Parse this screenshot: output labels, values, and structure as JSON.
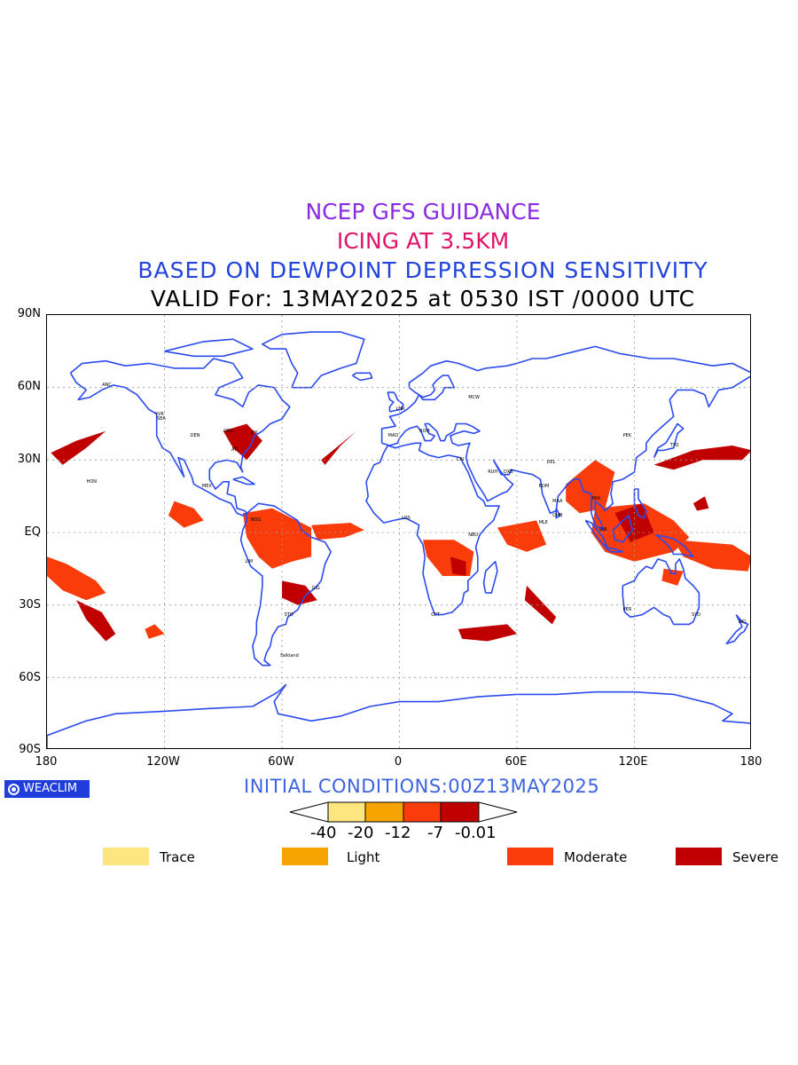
{
  "titles": {
    "line1": "NCEP GFS GUIDANCE",
    "line2": "ICING AT 3.5KM",
    "line3": "BASED ON DEWPOINT DEPRESSION SENSITIVITY",
    "line4": "VALID For: 13MAY2025 at 0530 IST /0000 UTC"
  },
  "colors": {
    "title1": "#8a2be2",
    "title2": "#e0136b",
    "title3": "#2244dd",
    "title4": "#000000",
    "coast": "#2b4bf0",
    "trace": "#fde680",
    "light": "#f7a300",
    "moderate": "#fa3c0a",
    "severe": "#c00000",
    "grid": "#9a9a9a"
  },
  "map": {
    "lat_labels": [
      "90N",
      "60N",
      "30N",
      "EQ",
      "30S",
      "60S",
      "90S"
    ],
    "lon_labels": [
      "180",
      "120W",
      "60W",
      "0",
      "60E",
      "120E",
      "180"
    ],
    "cities": [
      {
        "name": "ANC",
        "lon": -150,
        "lat": 61
      },
      {
        "name": "YVR",
        "lon": -123,
        "lat": 49
      },
      {
        "name": "SEA",
        "lon": -122,
        "lat": 47
      },
      {
        "name": "DEN",
        "lon": -105,
        "lat": 40
      },
      {
        "name": "ORD",
        "lon": -88,
        "lat": 42
      },
      {
        "name": "ATL",
        "lon": -84,
        "lat": 34
      },
      {
        "name": "JFK",
        "lon": -74,
        "lat": 41
      },
      {
        "name": "MEX",
        "lon": -99,
        "lat": 19
      },
      {
        "name": "HON",
        "lon": -158,
        "lat": 21
      },
      {
        "name": "BOG",
        "lon": -74,
        "lat": 5
      },
      {
        "name": "LIM",
        "lon": -77,
        "lat": -12
      },
      {
        "name": "GIG",
        "lon": -43,
        "lat": -23
      },
      {
        "name": "STO",
        "lon": -57,
        "lat": -34
      },
      {
        "name": "Falkland",
        "lon": -59,
        "lat": -51
      },
      {
        "name": "LHR",
        "lon": 0,
        "lat": 51
      },
      {
        "name": "MAD",
        "lon": -4,
        "lat": 40
      },
      {
        "name": "ROM",
        "lon": 12,
        "lat": 42
      },
      {
        "name": "MCW",
        "lon": 37,
        "lat": 56
      },
      {
        "name": "CAI",
        "lon": 31,
        "lat": 30
      },
      {
        "name": "RUH",
        "lon": 47,
        "lat": 25
      },
      {
        "name": "DXB",
        "lon": 55,
        "lat": 25
      },
      {
        "name": "DEL",
        "lon": 77,
        "lat": 29
      },
      {
        "name": "BOM",
        "lon": 73,
        "lat": 19
      },
      {
        "name": "MAA",
        "lon": 80,
        "lat": 13
      },
      {
        "name": "CMB",
        "lon": 80,
        "lat": 7
      },
      {
        "name": "MLE",
        "lon": 73,
        "lat": 4
      },
      {
        "name": "NBO",
        "lon": 37,
        "lat": -1
      },
      {
        "name": "CPT",
        "lon": 18,
        "lat": -34
      },
      {
        "name": "LOS",
        "lon": 3,
        "lat": 6
      },
      {
        "name": "BKK",
        "lon": 100,
        "lat": 14
      },
      {
        "name": "PEK",
        "lon": 116,
        "lat": 40
      },
      {
        "name": "TYO",
        "lon": 140,
        "lat": 36
      },
      {
        "name": "SIN",
        "lon": 104,
        "lat": 1
      },
      {
        "name": "PER",
        "lon": 116,
        "lat": -32
      },
      {
        "name": "SYD",
        "lon": 151,
        "lat": -34
      },
      {
        "name": "AKL",
        "lon": 175,
        "lat": -37
      }
    ]
  },
  "footer": {
    "brand": "WEACLIM",
    "init": "INITIAL CONDITIONS:00Z13MAY2025",
    "colorbar_ticks": [
      "-40",
      "-20",
      "-12",
      "-7",
      "-0.01"
    ],
    "legend": [
      {
        "label": "Trace",
        "color": "#fde680"
      },
      {
        "label": "Light",
        "color": "#f7a300"
      },
      {
        "label": "Moderate",
        "color": "#fa3c0a"
      },
      {
        "label": "Severe",
        "color": "#c00000"
      }
    ]
  }
}
